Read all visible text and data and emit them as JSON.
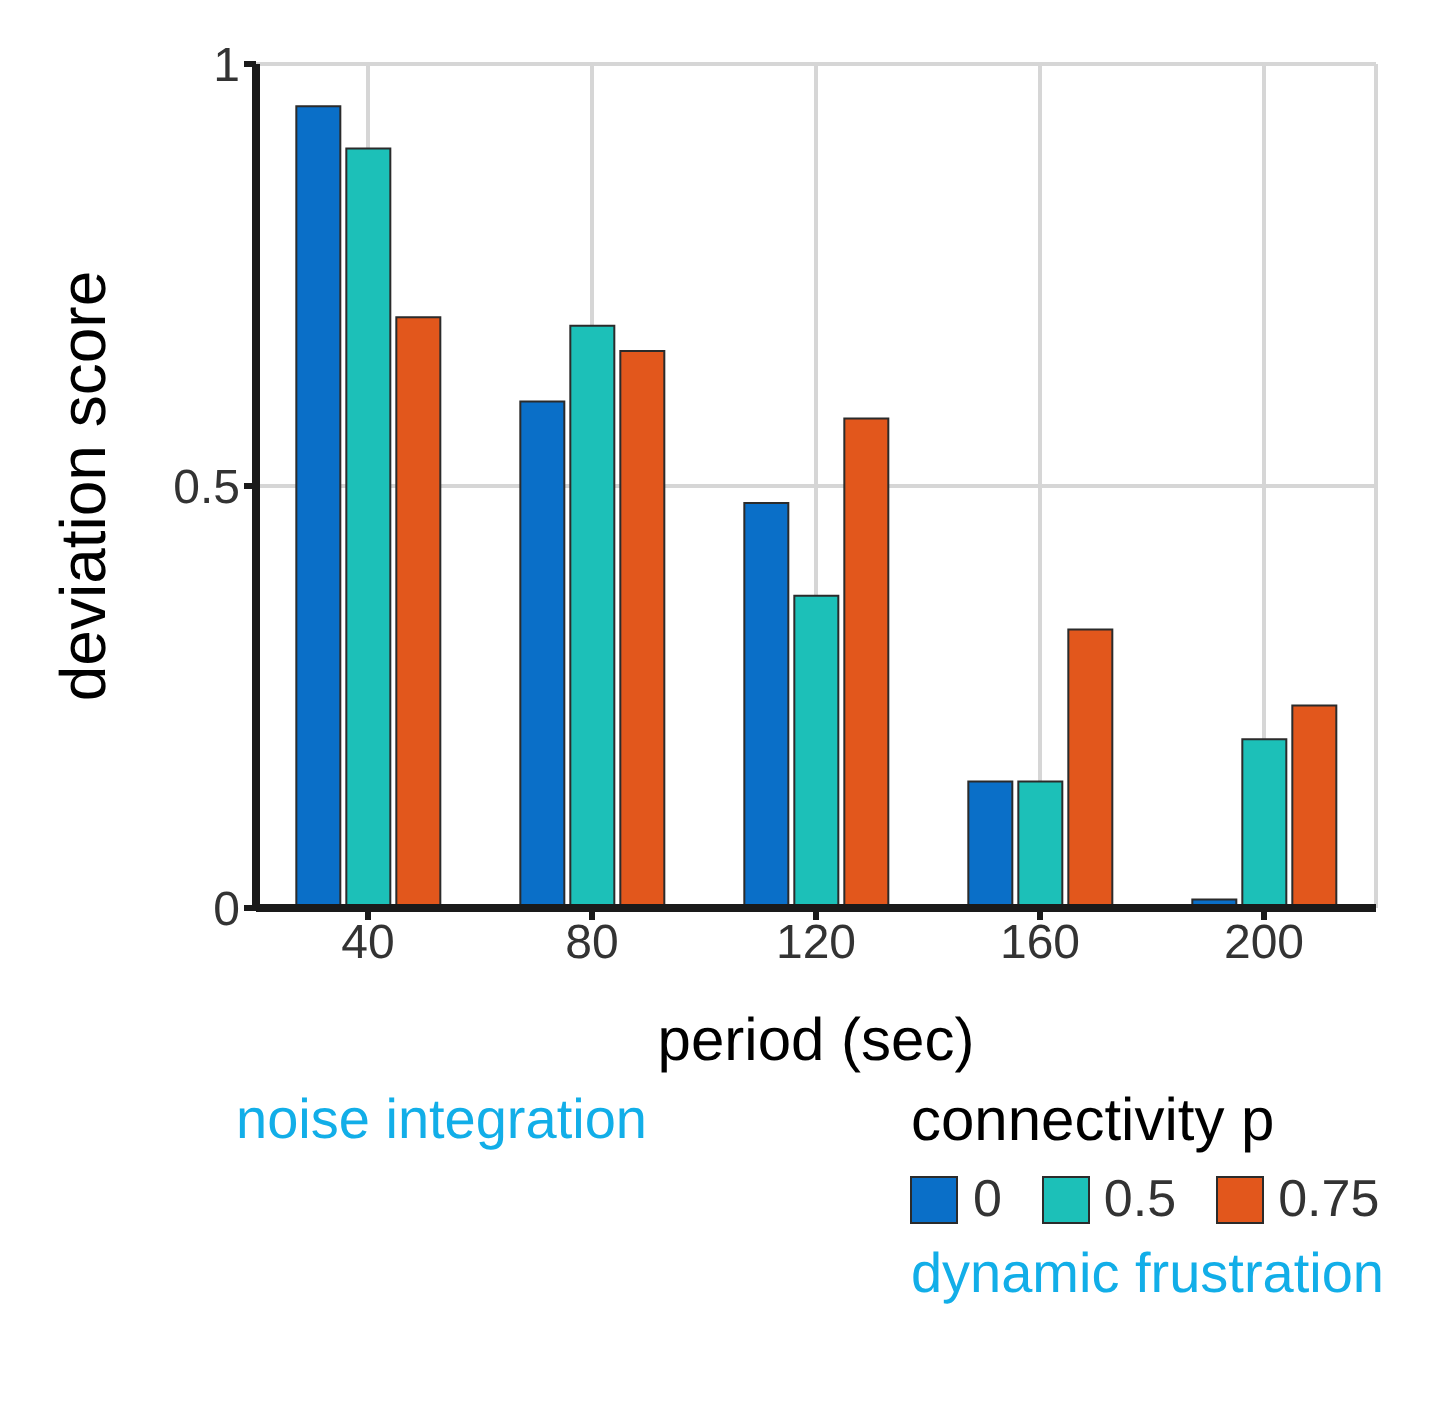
{
  "chart_data": {
    "type": "bar",
    "categories": [
      "40",
      "80",
      "120",
      "160",
      "200"
    ],
    "series": [
      {
        "name": "0",
        "color": "#0a6fc8",
        "values": [
          0.95,
          0.6,
          0.48,
          0.15,
          0.01
        ]
      },
      {
        "name": "0.5",
        "color": "#1cc0b8",
        "values": [
          0.9,
          0.69,
          0.37,
          0.15,
          0.2
        ]
      },
      {
        "name": "0.75",
        "color": "#e2571c",
        "values": [
          0.7,
          0.66,
          0.58,
          0.33,
          0.24
        ]
      }
    ],
    "xlabel": "period (sec)",
    "ylabel": "deviation score",
    "legend_title": "connectivity p",
    "annotations": [
      "noise integration",
      "dynamic frustration"
    ],
    "ylim": [
      0,
      1
    ],
    "yticks": [
      0,
      0.5,
      1
    ],
    "grid": true,
    "legend": "bottom right"
  }
}
